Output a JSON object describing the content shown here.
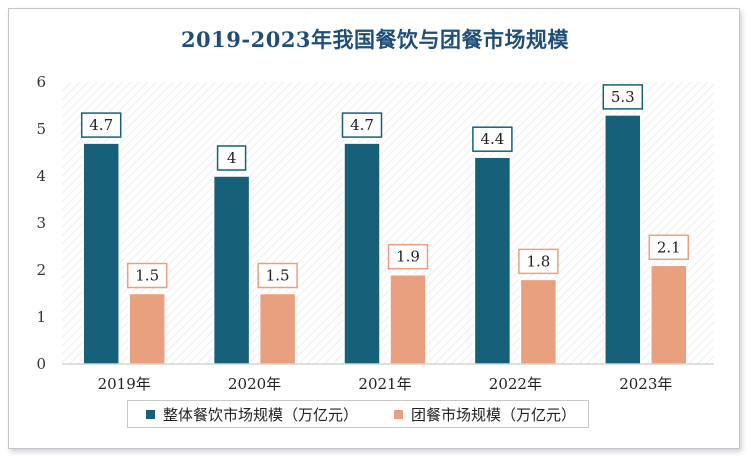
{
  "chart_data": {
    "type": "bar",
    "title": "2019-2023年我国餐饮与团餐市场规模",
    "categories": [
      "2019年",
      "2020年",
      "2021年",
      "2022年",
      "2023年"
    ],
    "series": [
      {
        "name": "整体餐饮市场规模（万亿元）",
        "values": [
          4.7,
          4,
          4.7,
          4.4,
          5.3
        ],
        "color": "#17607a"
      },
      {
        "name": "团餐市场规模（万亿元）",
        "values": [
          1.5,
          1.5,
          1.9,
          1.8,
          2.1
        ],
        "color": "#e9a07f"
      }
    ],
    "ylim": [
      0,
      6
    ],
    "yticks": [
      "0",
      "1",
      "2",
      "3",
      "4",
      "5",
      "6"
    ],
    "xlabel": "",
    "ylabel": "",
    "grid": false,
    "legend_position": "bottom"
  }
}
